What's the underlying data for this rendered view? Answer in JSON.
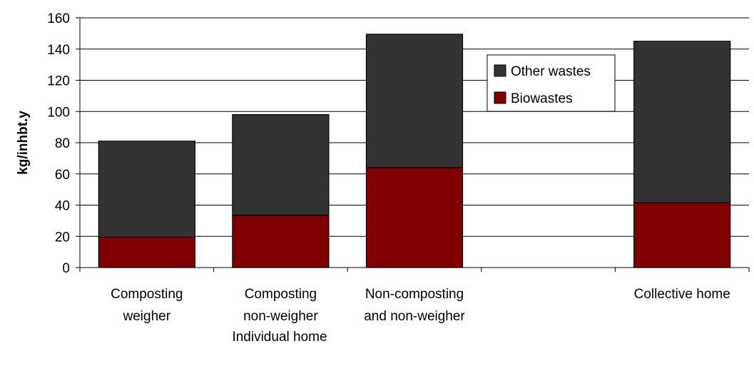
{
  "chart_data": {
    "type": "bar",
    "stacked": true,
    "ylabel": "kg/inhbt.y",
    "ylim": [
      0,
      160
    ],
    "yticks": [
      0,
      20,
      40,
      60,
      80,
      100,
      120,
      140,
      160
    ],
    "grid": true,
    "legend_position": "top-right",
    "categories": [
      {
        "lines": [
          "Composting",
          "weigher"
        ],
        "group": "Individual home"
      },
      {
        "lines": [
          "Composting",
          "non-weigher"
        ],
        "group": "Individual home"
      },
      {
        "lines": [
          "Non-composting",
          "and non-weigher"
        ],
        "group": "Individual home"
      },
      {
        "lines": [],
        "group": ""
      },
      {
        "lines": [
          "Collective home"
        ],
        "group": ""
      }
    ],
    "group_label": "Individual home",
    "series": [
      {
        "name": "Biowastes",
        "color": "#800000",
        "values": [
          19.5,
          33.5,
          64,
          null,
          41.5
        ]
      },
      {
        "name": "Other wastes",
        "color": "#333333",
        "values": [
          61.5,
          64.5,
          85.5,
          null,
          103.5
        ]
      }
    ],
    "totals": [
      81,
      98,
      149.5,
      null,
      145
    ]
  }
}
